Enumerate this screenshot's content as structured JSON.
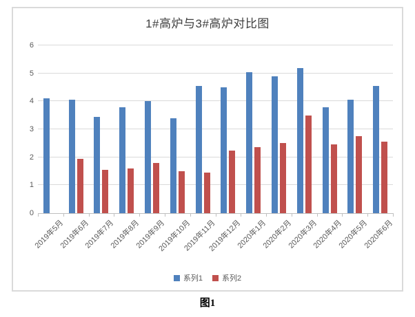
{
  "page": {
    "caption": "图1"
  },
  "chart": {
    "title": "1#高炉与3#高炉对比图"
  },
  "chart_data": {
    "type": "bar",
    "title": "1#高炉与3#高炉对比图",
    "categories": [
      "2019年5月",
      "2019年6月",
      "2019年7月",
      "2019年8月",
      "2019年9月",
      "2019年10月",
      "2019年11月",
      "2019年12月",
      "2020年1月",
      "2020年2月",
      "2020年3月",
      "2020年4月",
      "2020年5月",
      "2020年6月"
    ],
    "series": [
      {
        "name": "系列1",
        "color": "#4F81BD",
        "values": [
          4.1,
          4.05,
          3.45,
          3.8,
          4.0,
          3.4,
          4.55,
          4.5,
          5.05,
          4.9,
          5.2,
          3.8,
          4.05,
          4.55
        ]
      },
      {
        "name": "系列2",
        "color": "#C0504D",
        "values": [
          null,
          1.95,
          1.55,
          1.6,
          1.8,
          1.5,
          1.45,
          2.25,
          2.35,
          2.5,
          3.5,
          2.45,
          2.75,
          2.55
        ]
      }
    ],
    "ylim": [
      0,
      6
    ],
    "yticks": [
      0,
      1,
      2,
      3,
      4,
      5,
      6
    ],
    "grid": true,
    "legend_position": "bottom",
    "colors": {
      "gridline": "#D9D9D9",
      "axis_line": "#BFBFBF",
      "tick_label": "#595959",
      "title": "#3F3F3F",
      "frame_border": "#DADADA"
    }
  }
}
